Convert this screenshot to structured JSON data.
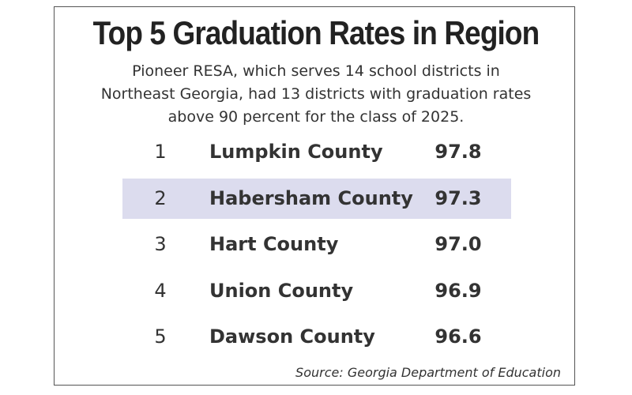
{
  "header": {
    "title": "Top 5 Graduation Rates in Region",
    "subtitle_lines": [
      "Pioneer RESA, which serves 14 school districts in",
      "Northeast Georgia, had 13 districts with graduation rates",
      "above 90 percent for the class of 2025."
    ]
  },
  "table": {
    "rows": [
      [
        1,
        "Lumpkin County",
        "97.8"
      ],
      [
        2,
        "Habersham County",
        "97.3"
      ],
      [
        3,
        "Hart County",
        "97.0"
      ],
      [
        4,
        "Union County",
        "96.9"
      ],
      [
        5,
        "Dawson County",
        "96.6"
      ]
    ]
  },
  "footer": {
    "source": "Source: Georgia Department of Education"
  }
}
